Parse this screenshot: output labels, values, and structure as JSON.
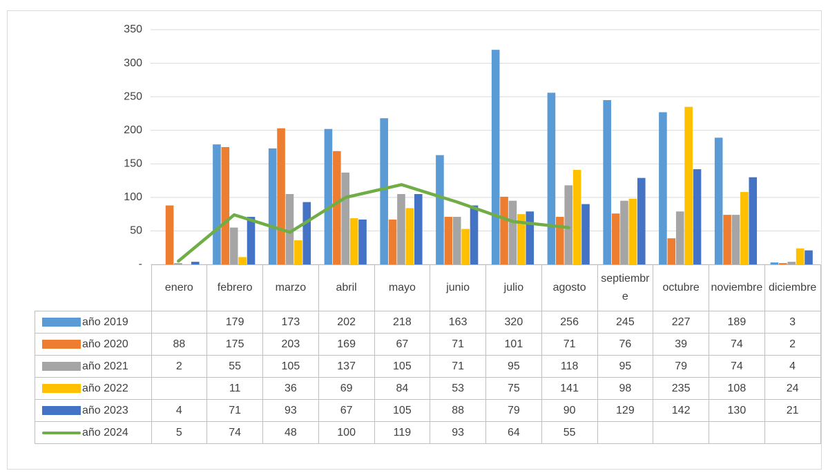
{
  "chart_data": {
    "type": "bar_line_table",
    "categories": [
      "enero",
      "febrero",
      "marzo",
      "abril",
      "mayo",
      "junio",
      "julio",
      "agosto",
      "septiembre",
      "octubre",
      "noviembre",
      "diciembre"
    ],
    "series": [
      {
        "name": "año 2019",
        "type": "bar",
        "color": "#5b9bd5",
        "values": [
          null,
          179,
          173,
          202,
          218,
          163,
          320,
          256,
          245,
          227,
          189,
          3
        ]
      },
      {
        "name": "año 2020",
        "type": "bar",
        "color": "#ed7d31",
        "values": [
          88,
          175,
          203,
          169,
          67,
          71,
          101,
          71,
          76,
          39,
          74,
          2
        ]
      },
      {
        "name": "año 2021",
        "type": "bar",
        "color": "#a5a5a5",
        "values": [
          2,
          55,
          105,
          137,
          105,
          71,
          95,
          118,
          95,
          79,
          74,
          4
        ]
      },
      {
        "name": "año 2022",
        "type": "bar",
        "color": "#ffc000",
        "values": [
          null,
          11,
          36,
          69,
          84,
          53,
          75,
          141,
          98,
          235,
          108,
          24
        ]
      },
      {
        "name": "año 2023",
        "type": "bar",
        "color": "#4472c4",
        "values": [
          4,
          71,
          93,
          67,
          105,
          88,
          79,
          90,
          129,
          142,
          130,
          21
        ]
      },
      {
        "name": "año 2024",
        "type": "line",
        "color": "#70ad47",
        "values": [
          5,
          74,
          48,
          100,
          119,
          93,
          64,
          55,
          null,
          null,
          null,
          null
        ]
      }
    ],
    "ylim": [
      0,
      350
    ],
    "yticks": [
      {
        "value": 0,
        "label": "-"
      },
      50,
      100,
      150,
      200,
      250,
      300,
      350
    ],
    "grid": true
  }
}
